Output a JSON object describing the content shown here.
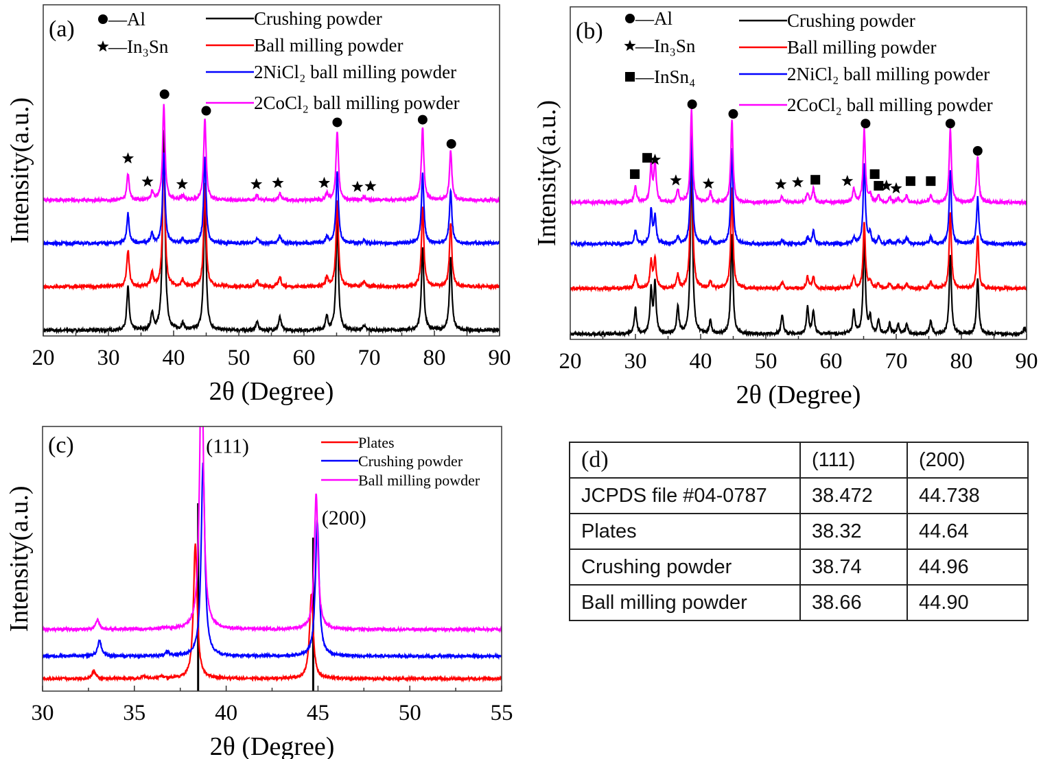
{
  "chart_data": [
    {
      "id": "a",
      "type": "line",
      "panel_label": "(a)",
      "xlabel": "2θ (Degree)",
      "ylabel": "Intensity(a.u.)",
      "xlim": [
        20,
        90
      ],
      "ylim": [
        0,
        100
      ],
      "xticks": [
        20,
        30,
        40,
        50,
        60,
        70,
        80,
        90
      ],
      "peak_width": 0.22,
      "marker_legend": [
        {
          "symbol": "circle",
          "label": "—Al"
        },
        {
          "symbol": "star",
          "label": "—In₃Sn"
        }
      ],
      "series": [
        {
          "name": "Crushing powder",
          "color": "#000000",
          "baseline": 1.7,
          "peaks": [
            [
              33.0,
              13
            ],
            [
              36.7,
              5
            ],
            [
              38.5,
              60
            ],
            [
              41.4,
              2
            ],
            [
              44.8,
              40
            ],
            [
              52.8,
              2.5
            ],
            [
              56.3,
              4
            ],
            [
              63.5,
              4
            ],
            [
              65.1,
              33
            ],
            [
              69.2,
              1.5
            ],
            [
              78.2,
              25
            ],
            [
              82.5,
              22
            ]
          ]
        },
        {
          "name": "Ball milling powder",
          "color": "#ff0000",
          "baseline": 14.9,
          "peaks": [
            [
              33.0,
              11
            ],
            [
              36.7,
              4
            ],
            [
              38.5,
              40
            ],
            [
              41.4,
              2
            ],
            [
              44.8,
              31
            ],
            [
              52.8,
              2
            ],
            [
              56.3,
              3
            ],
            [
              63.5,
              3
            ],
            [
              65.1,
              26
            ],
            [
              69.2,
              1.5
            ],
            [
              78.2,
              24
            ],
            [
              82.5,
              19
            ]
          ]
        },
        {
          "name": "2NiCl₂ ball milling powder",
          "color": "#0000ff",
          "baseline": 28.0,
          "peaks": [
            [
              33.0,
              9
            ],
            [
              36.7,
              3
            ],
            [
              38.5,
              27
            ],
            [
              41.4,
              1.5
            ],
            [
              44.8,
              26
            ],
            [
              52.8,
              1.5
            ],
            [
              56.3,
              2.5
            ],
            [
              63.5,
              2
            ],
            [
              65.1,
              22
            ],
            [
              69.2,
              1
            ],
            [
              78.2,
              21
            ],
            [
              82.5,
              16
            ]
          ]
        },
        {
          "name": "2CoCl₂ ball milling powder",
          "color": "#ff00ff",
          "baseline": 41.0,
          "peaks": [
            [
              33.0,
              8
            ],
            [
              36.7,
              2.5
            ],
            [
              38.5,
              29
            ],
            [
              41.4,
              1.5
            ],
            [
              44.8,
              25
            ],
            [
              52.8,
              1.5
            ],
            [
              56.3,
              2
            ],
            [
              63.5,
              2
            ],
            [
              65.1,
              21
            ],
            [
              69.2,
              1
            ],
            [
              78.2,
              22
            ],
            [
              82.5,
              15
            ]
          ]
        }
      ],
      "markers": [
        {
          "symbol": "circle",
          "x": 38.6,
          "y": 73
        },
        {
          "symbol": "circle",
          "x": 45.0,
          "y": 68
        },
        {
          "symbol": "circle",
          "x": 65.1,
          "y": 64.5
        },
        {
          "symbol": "circle",
          "x": 78.2,
          "y": 65.3
        },
        {
          "symbol": "circle",
          "x": 82.6,
          "y": 58
        },
        {
          "symbol": "star",
          "x": 33.0,
          "y": 53.6
        },
        {
          "symbol": "star",
          "x": 36.0,
          "y": 46.6
        },
        {
          "symbol": "star",
          "x": 41.3,
          "y": 45.8
        },
        {
          "symbol": "star",
          "x": 52.7,
          "y": 45.8
        },
        {
          "symbol": "star",
          "x": 56.0,
          "y": 46.2
        },
        {
          "symbol": "star",
          "x": 63.1,
          "y": 46.2
        },
        {
          "symbol": "star",
          "x": 68.2,
          "y": 45
        },
        {
          "symbol": "star",
          "x": 70.2,
          "y": 45.2
        }
      ]
    },
    {
      "id": "b",
      "type": "line",
      "panel_label": "(b)",
      "xlabel": "2θ (Degree)",
      "ylabel": "Intensity(a.u.)",
      "xlim": [
        20,
        90
      ],
      "ylim": [
        0,
        100
      ],
      "xticks": [
        20,
        30,
        40,
        50,
        60,
        70,
        80,
        90
      ],
      "peak_width": 0.2,
      "marker_legend": [
        {
          "symbol": "circle",
          "label": "—Al"
        },
        {
          "symbol": "star",
          "label": "—In₃Sn"
        },
        {
          "symbol": "square",
          "label": "—InSn₄"
        }
      ],
      "series": [
        {
          "name": "Crushing powder",
          "color": "#000000",
          "baseline": 1.6,
          "peaks": [
            [
              30.0,
              8
            ],
            [
              32.4,
              13
            ],
            [
              33.0,
              15
            ],
            [
              36.5,
              8
            ],
            [
              38.6,
              54
            ],
            [
              41.5,
              4
            ],
            [
              44.8,
              30
            ],
            [
              52.5,
              6
            ],
            [
              56.4,
              8
            ],
            [
              57.3,
              7
            ],
            [
              63.5,
              7
            ],
            [
              65.1,
              29
            ],
            [
              66.0,
              5
            ],
            [
              67.3,
              4
            ],
            [
              69.0,
              3
            ],
            [
              70.3,
              3
            ],
            [
              71.6,
              3
            ],
            [
              75.3,
              4
            ],
            [
              78.3,
              24
            ],
            [
              82.5,
              17
            ],
            [
              89.7,
              2
            ]
          ]
        },
        {
          "name": "Ball milling powder",
          "color": "#ff0000",
          "baseline": 15.3,
          "peaks": [
            [
              30.0,
              4
            ],
            [
              32.4,
              8
            ],
            [
              33.0,
              9
            ],
            [
              36.5,
              4
            ],
            [
              38.6,
              48
            ],
            [
              41.5,
              2
            ],
            [
              44.8,
              30
            ],
            [
              52.5,
              2
            ],
            [
              56.4,
              3.5
            ],
            [
              57.3,
              3.5
            ],
            [
              63.5,
              3.5
            ],
            [
              65.1,
              20
            ],
            [
              66.0,
              2
            ],
            [
              67.3,
              1.5
            ],
            [
              69.0,
              1.5
            ],
            [
              70.3,
              1
            ],
            [
              71.6,
              1.5
            ],
            [
              75.3,
              2
            ],
            [
              78.3,
              23
            ],
            [
              82.5,
              16
            ]
          ]
        },
        {
          "name": "2NiCl₂ ball milling powder",
          "color": "#0000ff",
          "baseline": 28.7,
          "peaks": [
            [
              30.0,
              4
            ],
            [
              32.4,
              10
            ],
            [
              33.0,
              8
            ],
            [
              36.5,
              2
            ],
            [
              38.6,
              32
            ],
            [
              41.5,
              1.5
            ],
            [
              44.8,
              29
            ],
            [
              52.5,
              1
            ],
            [
              56.4,
              2
            ],
            [
              57.3,
              4
            ],
            [
              63.5,
              2
            ],
            [
              65.1,
              24
            ],
            [
              66.0,
              3
            ],
            [
              67.3,
              2
            ],
            [
              69.0,
              1
            ],
            [
              70.3,
              1
            ],
            [
              71.6,
              2
            ],
            [
              75.3,
              2
            ],
            [
              78.3,
              22
            ],
            [
              82.5,
              14
            ]
          ]
        },
        {
          "name": "2CoCl₂ ball milling powder",
          "color": "#ff00ff",
          "baseline": 41.2,
          "peaks": [
            [
              30.0,
              5
            ],
            [
              32.4,
              11
            ],
            [
              33.0,
              12
            ],
            [
              36.5,
              4
            ],
            [
              38.6,
              28
            ],
            [
              41.5,
              3
            ],
            [
              44.8,
              25
            ],
            [
              52.5,
              2
            ],
            [
              56.4,
              3
            ],
            [
              57.3,
              4
            ],
            [
              63.5,
              4
            ],
            [
              65.1,
              22
            ],
            [
              66.0,
              2
            ],
            [
              67.3,
              2
            ],
            [
              69.0,
              1.5
            ],
            [
              70.3,
              1.5
            ],
            [
              71.6,
              2
            ],
            [
              75.3,
              2
            ],
            [
              78.3,
              22
            ],
            [
              82.5,
              14
            ]
          ]
        }
      ],
      "markers": [
        {
          "symbol": "circle",
          "x": 38.7,
          "y": 70.7
        },
        {
          "symbol": "circle",
          "x": 45.0,
          "y": 67.8
        },
        {
          "symbol": "circle",
          "x": 65.3,
          "y": 64.9
        },
        {
          "symbol": "circle",
          "x": 78.3,
          "y": 64.9
        },
        {
          "symbol": "circle",
          "x": 82.5,
          "y": 56.7
        },
        {
          "symbol": "square",
          "x": 29.9,
          "y": 49.7
        },
        {
          "symbol": "square",
          "x": 31.8,
          "y": 54.6
        },
        {
          "symbol": "square",
          "x": 57.6,
          "y": 48
        },
        {
          "symbol": "square",
          "x": 66.7,
          "y": 49.7
        },
        {
          "symbol": "square",
          "x": 67.3,
          "y": 46.2
        },
        {
          "symbol": "square",
          "x": 72.2,
          "y": 47.6
        },
        {
          "symbol": "square",
          "x": 75.3,
          "y": 47.6
        },
        {
          "symbol": "star",
          "x": 33.0,
          "y": 54
        },
        {
          "symbol": "star",
          "x": 36.2,
          "y": 47.8
        },
        {
          "symbol": "star",
          "x": 41.2,
          "y": 46.8
        },
        {
          "symbol": "star",
          "x": 52.3,
          "y": 46.6
        },
        {
          "symbol": "star",
          "x": 54.9,
          "y": 47.2
        },
        {
          "symbol": "star",
          "x": 62.5,
          "y": 47.6
        },
        {
          "symbol": "star",
          "x": 68.5,
          "y": 46.2
        },
        {
          "symbol": "star",
          "x": 70.0,
          "y": 45.4
        }
      ]
    },
    {
      "id": "c",
      "type": "line",
      "panel_label": "(c)",
      "xlabel": "2θ (Degree)",
      "ylabel": "Intensity(a.u.)",
      "xlim": [
        30,
        55
      ],
      "ylim": [
        0,
        100
      ],
      "xticks": [
        30,
        35,
        40,
        45,
        50,
        55
      ],
      "peak_width": 0.12,
      "series": [
        {
          "name": "Plates",
          "color": "#ff0000",
          "baseline": 4.7,
          "peaks": [
            [
              32.8,
              3
            ],
            [
              35.5,
              1
            ],
            [
              36.5,
              0.8
            ],
            [
              38.32,
              51
            ],
            [
              44.64,
              32
            ]
          ]
        },
        {
          "name": "Crushing powder",
          "color": "#0000ff",
          "baseline": 13.2,
          "peaks": [
            [
              33.1,
              6
            ],
            [
              36.8,
              1.5
            ],
            [
              38.74,
              73
            ],
            [
              44.96,
              51
            ]
          ]
        },
        {
          "name": "Ball milling powder",
          "color": "#ff00ff",
          "baseline": 23.3,
          "peaks": [
            [
              33.0,
              3.5
            ],
            [
              36.7,
              0.8
            ],
            [
              38.66,
              110
            ],
            [
              44.9,
              51
            ]
          ]
        }
      ],
      "reference_lines": [
        {
          "name": "JCPDS #04-0787",
          "color": "#000000",
          "x": 38.472,
          "y": 71
        },
        {
          "name": "JCPDS #04-0787",
          "color": "#000000",
          "x": 44.738,
          "y": 58
        }
      ],
      "annotations": [
        {
          "text": "(111)",
          "x": 38.9,
          "y": 90
        },
        {
          "text": "(200)",
          "x": 45.2,
          "y": 63
        }
      ]
    },
    {
      "id": "d",
      "type": "table",
      "panel_label": "(d)",
      "columns": [
        "",
        "(111)",
        "(200)"
      ],
      "rows": [
        [
          "JCPDS file #04-0787",
          "38.472",
          "44.738"
        ],
        [
          "Plates",
          "38.32",
          "44.64"
        ],
        [
          "Crushing powder",
          "38.74",
          "44.96"
        ],
        [
          "Ball milling powder",
          "38.66",
          "44.90"
        ]
      ]
    }
  ]
}
